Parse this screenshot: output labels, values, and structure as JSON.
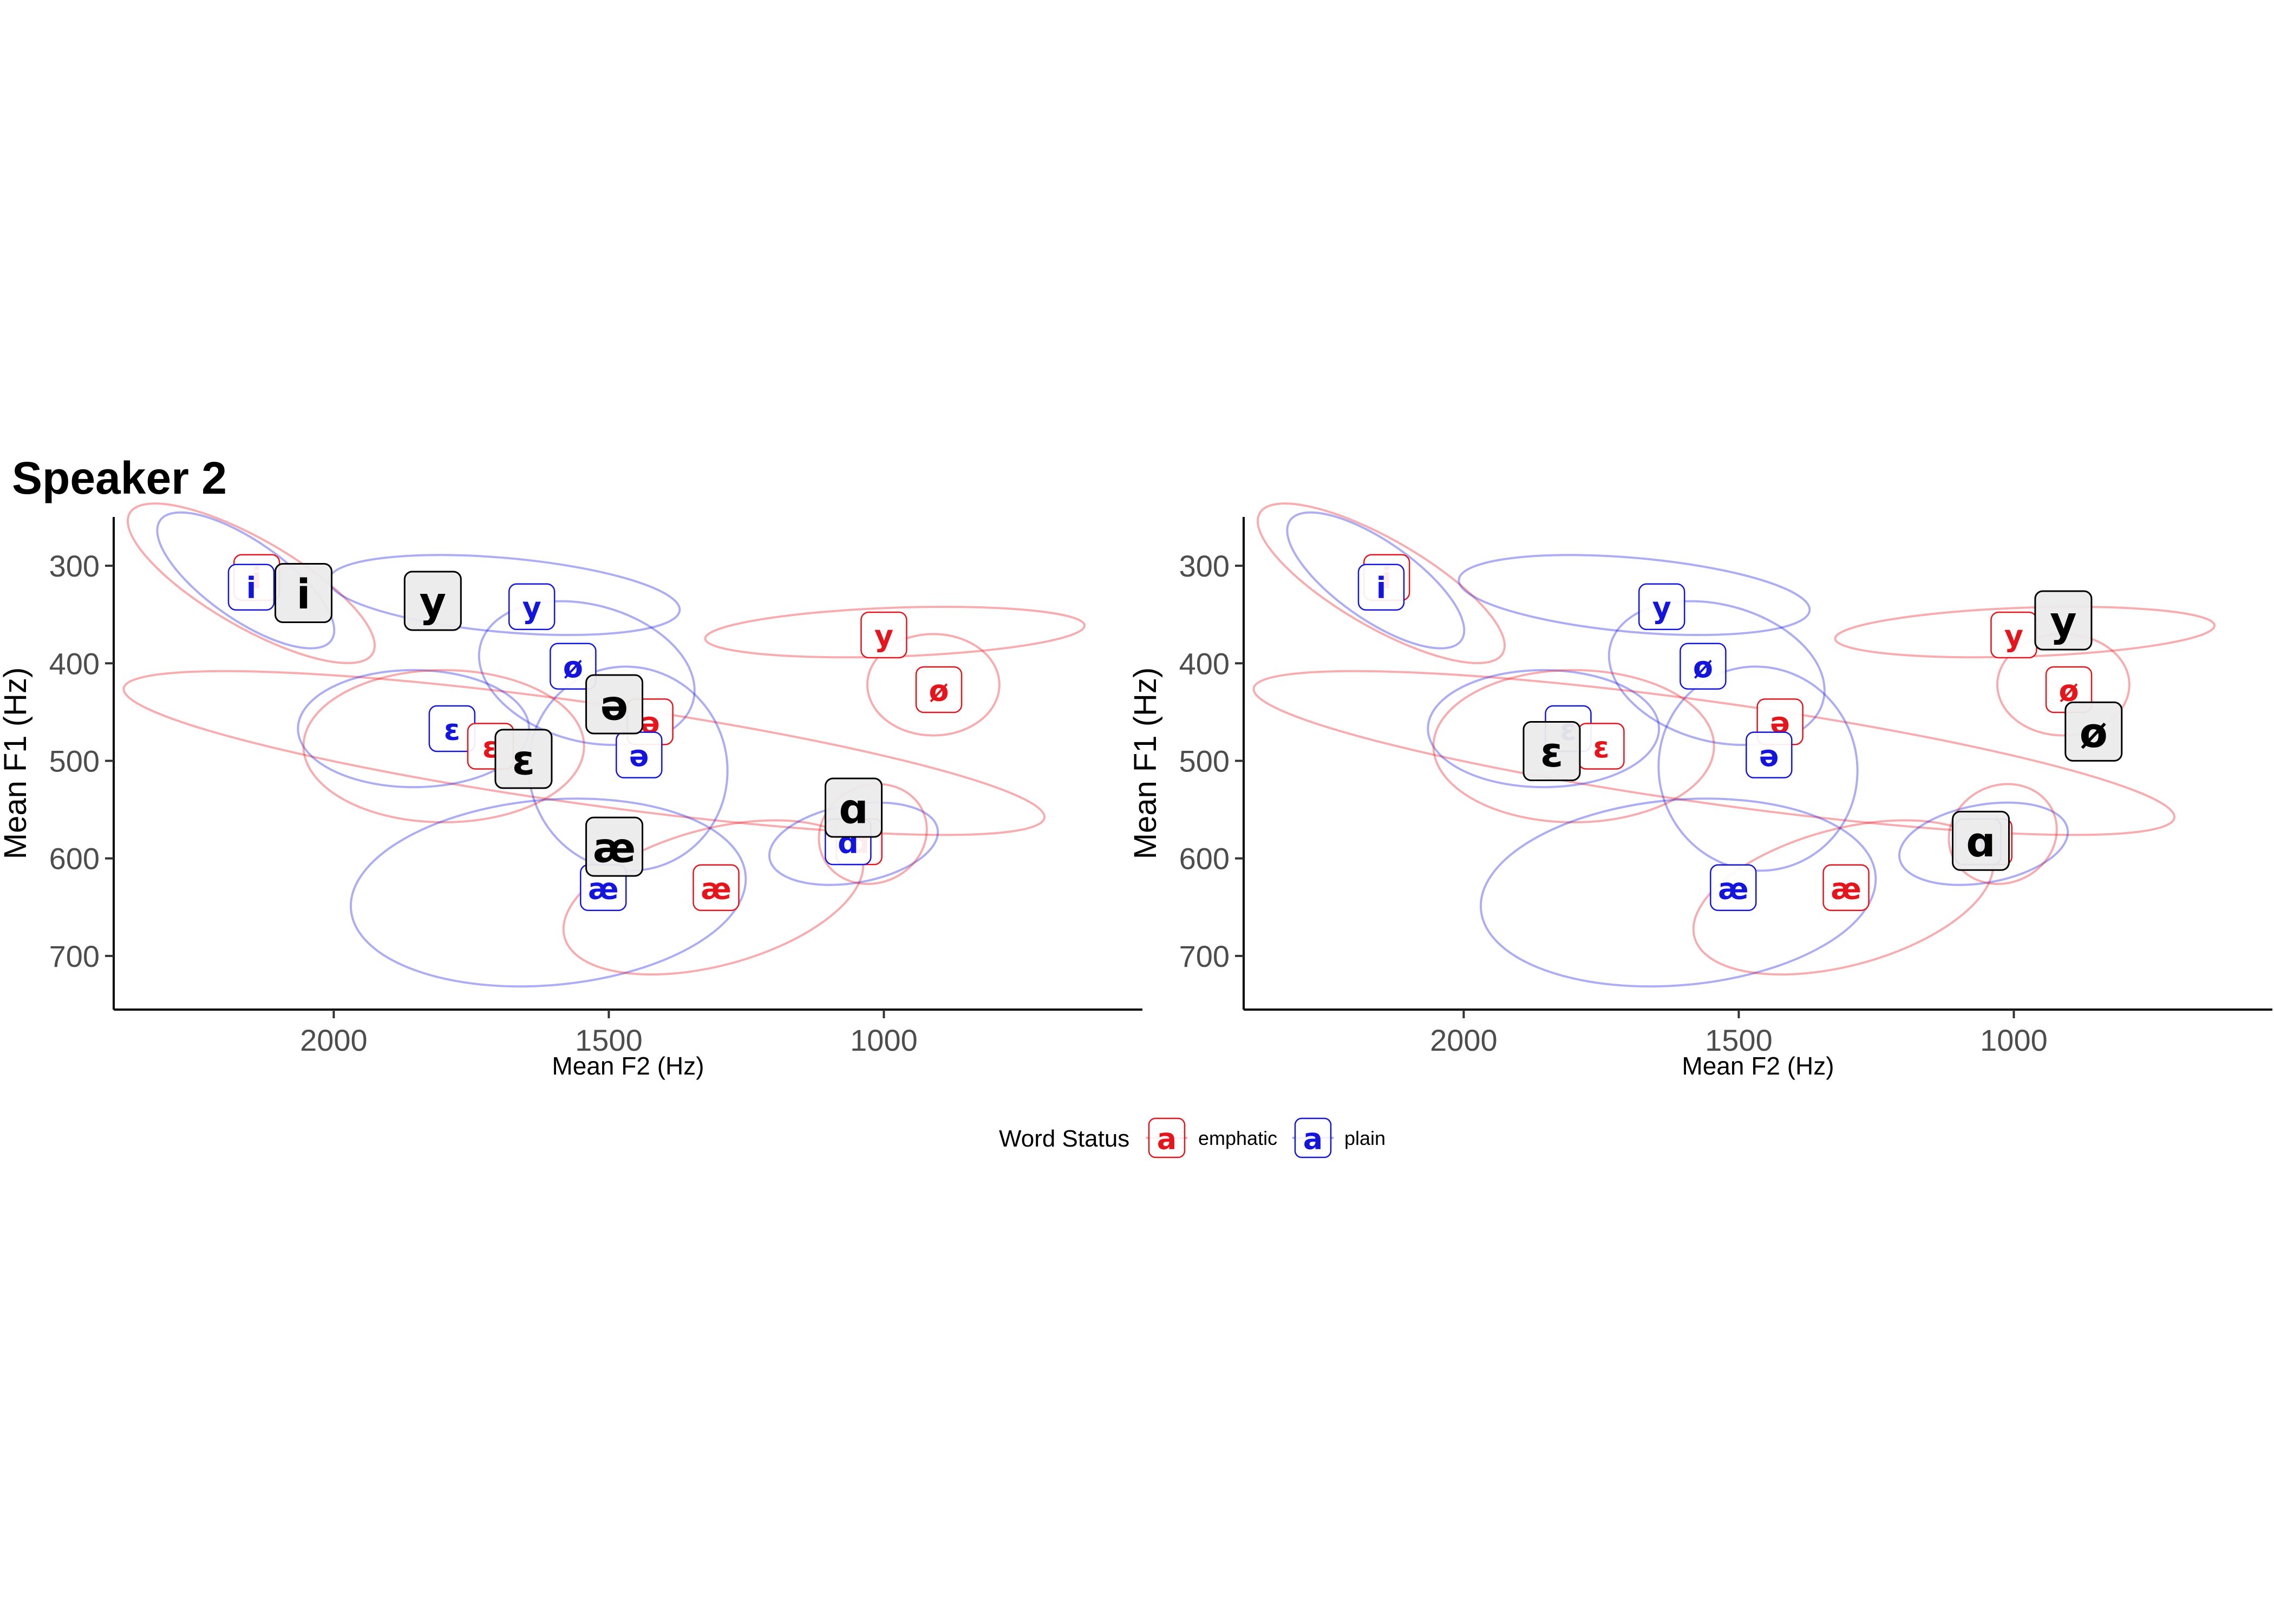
{
  "title": "Speaker 2",
  "colors": {
    "emphatic": "#e8141b",
    "plain": "#1414e0",
    "mean": "#000000",
    "mean_fill": "#ebebeb"
  },
  "legend": {
    "title": "Word Status",
    "key_glyph": "a",
    "items": [
      {
        "key": "emphatic",
        "label": "emphatic"
      },
      {
        "key": "plain",
        "label": "plain"
      }
    ]
  },
  "chart_data": [
    {
      "type": "scatter",
      "xlabel": "Mean F2 (Hz)",
      "ylabel": "Mean F1 (Hz)",
      "x_reversed": true,
      "y_reversed": true,
      "xlim": [
        2400,
        530
      ],
      "ylim": [
        250,
        755
      ],
      "x_ticks": [
        2000,
        1500,
        1000
      ],
      "y_ticks": [
        300,
        400,
        500,
        600,
        700
      ],
      "ellipses": [
        {
          "status": "emphatic",
          "vowel": "i",
          "cx": 2150,
          "cy": 318,
          "rx": 255,
          "ry": 45,
          "angle": 30
        },
        {
          "status": "plain",
          "vowel": "i",
          "cx": 2160,
          "cy": 315,
          "rx": 190,
          "ry": 40,
          "angle": 35
        },
        {
          "status": "plain",
          "vowel": "y",
          "cx": 1690,
          "cy": 330,
          "rx": 320,
          "ry": 38,
          "angle": 5
        },
        {
          "status": "emphatic",
          "vowel": "y",
          "cx": 980,
          "cy": 368,
          "rx": 345,
          "ry": 25,
          "angle": -2
        },
        {
          "status": "plain",
          "vowel": "ø",
          "cx": 1540,
          "cy": 410,
          "rx": 200,
          "ry": 70,
          "angle": 15
        },
        {
          "status": "emphatic",
          "vowel": "ø",
          "cx": 910,
          "cy": 422,
          "rx": 120,
          "ry": 52,
          "angle": 0
        },
        {
          "status": "emphatic",
          "vowel": "ə",
          "cx": 1545,
          "cy": 492,
          "rx": 845,
          "ry": 52,
          "angle": 8
        },
        {
          "status": "plain",
          "vowel": "ə",
          "cx": 1465,
          "cy": 508,
          "rx": 180,
          "ry": 105,
          "angle": -20
        },
        {
          "status": "plain",
          "vowel": "ɛ",
          "cx": 1855,
          "cy": 467,
          "rx": 210,
          "ry": 60,
          "angle": 0
        },
        {
          "status": "emphatic",
          "vowel": "ɛ",
          "cx": 1800,
          "cy": 485,
          "rx": 255,
          "ry": 78,
          "angle": 0
        },
        {
          "status": "plain",
          "vowel": "æ",
          "cx": 1610,
          "cy": 635,
          "rx": 360,
          "ry": 95,
          "angle": -5
        },
        {
          "status": "emphatic",
          "vowel": "æ",
          "cx": 1310,
          "cy": 640,
          "rx": 280,
          "ry": 70,
          "angle": -15
        },
        {
          "status": "plain",
          "vowel": "ɑ",
          "cx": 1055,
          "cy": 585,
          "rx": 155,
          "ry": 40,
          "angle": -10
        },
        {
          "status": "emphatic",
          "vowel": "ɑ",
          "cx": 1020,
          "cy": 575,
          "rx": 100,
          "ry": 50,
          "angle": -25
        }
      ],
      "points": [
        {
          "status": "emphatic",
          "vowel": "i",
          "x": 2140,
          "y": 312
        },
        {
          "status": "plain",
          "vowel": "i",
          "x": 2150,
          "y": 322
        },
        {
          "status": "mean",
          "vowel": "i",
          "x": 2055,
          "y": 328
        },
        {
          "status": "mean",
          "vowel": "y",
          "x": 1820,
          "y": 336
        },
        {
          "status": "plain",
          "vowel": "y",
          "x": 1640,
          "y": 342
        },
        {
          "status": "emphatic",
          "vowel": "y",
          "x": 1000,
          "y": 371
        },
        {
          "status": "plain",
          "vowel": "ø",
          "x": 1565,
          "y": 403
        },
        {
          "status": "emphatic",
          "vowel": "ø",
          "x": 900,
          "y": 427
        },
        {
          "status": "mean",
          "vowel": "ə",
          "x": 1490,
          "y": 442
        },
        {
          "status": "emphatic",
          "vowel": "ə",
          "x": 1425,
          "y": 460
        },
        {
          "status": "plain",
          "vowel": "ə",
          "x": 1445,
          "y": 494
        },
        {
          "status": "plain",
          "vowel": "ɛ",
          "x": 1785,
          "y": 467
        },
        {
          "status": "emphatic",
          "vowel": "ɛ",
          "x": 1715,
          "y": 485
        },
        {
          "status": "mean",
          "vowel": "ɛ",
          "x": 1655,
          "y": 498
        },
        {
          "status": "mean",
          "vowel": "ɑ",
          "x": 1055,
          "y": 548
        },
        {
          "status": "emphatic",
          "vowel": "ɑ",
          "x": 1045,
          "y": 583
        },
        {
          "status": "plain",
          "vowel": "ɑ",
          "x": 1065,
          "y": 583
        },
        {
          "status": "mean",
          "vowel": "æ",
          "x": 1490,
          "y": 588
        },
        {
          "status": "plain",
          "vowel": "æ",
          "x": 1510,
          "y": 630
        },
        {
          "status": "emphatic",
          "vowel": "æ",
          "x": 1305,
          "y": 630
        }
      ]
    },
    {
      "type": "scatter",
      "xlabel": "Mean F2 (Hz)",
      "ylabel": "Mean F1 (Hz)",
      "x_reversed": true,
      "y_reversed": true,
      "xlim": [
        2400,
        530
      ],
      "ylim": [
        250,
        755
      ],
      "x_ticks": [
        2000,
        1500,
        1000
      ],
      "y_ticks": [
        300,
        400,
        500,
        600,
        700
      ],
      "ellipses": [
        {
          "status": "emphatic",
          "vowel": "i",
          "cx": 2150,
          "cy": 318,
          "rx": 255,
          "ry": 45,
          "angle": 30
        },
        {
          "status": "plain",
          "vowel": "i",
          "cx": 2160,
          "cy": 315,
          "rx": 190,
          "ry": 40,
          "angle": 35
        },
        {
          "status": "plain",
          "vowel": "y",
          "cx": 1690,
          "cy": 330,
          "rx": 320,
          "ry": 38,
          "angle": 5
        },
        {
          "status": "emphatic",
          "vowel": "y",
          "cx": 980,
          "cy": 368,
          "rx": 345,
          "ry": 25,
          "angle": -2
        },
        {
          "status": "plain",
          "vowel": "ø",
          "cx": 1540,
          "cy": 410,
          "rx": 200,
          "ry": 70,
          "angle": 15
        },
        {
          "status": "emphatic",
          "vowel": "ø",
          "cx": 910,
          "cy": 422,
          "rx": 120,
          "ry": 52,
          "angle": 0
        },
        {
          "status": "emphatic",
          "vowel": "ə",
          "cx": 1545,
          "cy": 492,
          "rx": 845,
          "ry": 52,
          "angle": 8
        },
        {
          "status": "plain",
          "vowel": "ə",
          "cx": 1465,
          "cy": 508,
          "rx": 180,
          "ry": 105,
          "angle": -20
        },
        {
          "status": "plain",
          "vowel": "ɛ",
          "cx": 1855,
          "cy": 467,
          "rx": 210,
          "ry": 60,
          "angle": 0
        },
        {
          "status": "emphatic",
          "vowel": "ɛ",
          "cx": 1800,
          "cy": 485,
          "rx": 255,
          "ry": 78,
          "angle": 0
        },
        {
          "status": "plain",
          "vowel": "æ",
          "cx": 1610,
          "cy": 635,
          "rx": 360,
          "ry": 95,
          "angle": -5
        },
        {
          "status": "emphatic",
          "vowel": "æ",
          "cx": 1310,
          "cy": 640,
          "rx": 280,
          "ry": 70,
          "angle": -15
        },
        {
          "status": "plain",
          "vowel": "ɑ",
          "cx": 1055,
          "cy": 585,
          "rx": 155,
          "ry": 40,
          "angle": -10
        },
        {
          "status": "emphatic",
          "vowel": "ɑ",
          "cx": 1020,
          "cy": 575,
          "rx": 100,
          "ry": 50,
          "angle": -25
        }
      ],
      "points": [
        {
          "status": "emphatic",
          "vowel": "i",
          "x": 2140,
          "y": 312
        },
        {
          "status": "plain",
          "vowel": "i",
          "x": 2150,
          "y": 322
        },
        {
          "status": "plain",
          "vowel": "y",
          "x": 1640,
          "y": 342
        },
        {
          "status": "emphatic",
          "vowel": "y",
          "x": 1000,
          "y": 371
        },
        {
          "status": "mean",
          "vowel": "y",
          "x": 910,
          "y": 356
        },
        {
          "status": "plain",
          "vowel": "ø",
          "x": 1565,
          "y": 403
        },
        {
          "status": "emphatic",
          "vowel": "ø",
          "x": 900,
          "y": 427
        },
        {
          "status": "mean",
          "vowel": "ø",
          "x": 855,
          "y": 470
        },
        {
          "status": "emphatic",
          "vowel": "ə",
          "x": 1425,
          "y": 460
        },
        {
          "status": "plain",
          "vowel": "ə",
          "x": 1445,
          "y": 494
        },
        {
          "status": "plain",
          "vowel": "ɛ",
          "x": 1810,
          "y": 467
        },
        {
          "status": "emphatic",
          "vowel": "ɛ",
          "x": 1750,
          "y": 485
        },
        {
          "status": "mean",
          "vowel": "ɛ",
          "x": 1840,
          "y": 490
        },
        {
          "status": "emphatic",
          "vowel": "ɑ",
          "x": 1045,
          "y": 583
        },
        {
          "status": "plain",
          "vowel": "ɑ",
          "x": 1065,
          "y": 583
        },
        {
          "status": "mean",
          "vowel": "ɑ",
          "x": 1060,
          "y": 582
        },
        {
          "status": "plain",
          "vowel": "æ",
          "x": 1510,
          "y": 630
        },
        {
          "status": "emphatic",
          "vowel": "æ",
          "x": 1305,
          "y": 630
        }
      ]
    }
  ]
}
